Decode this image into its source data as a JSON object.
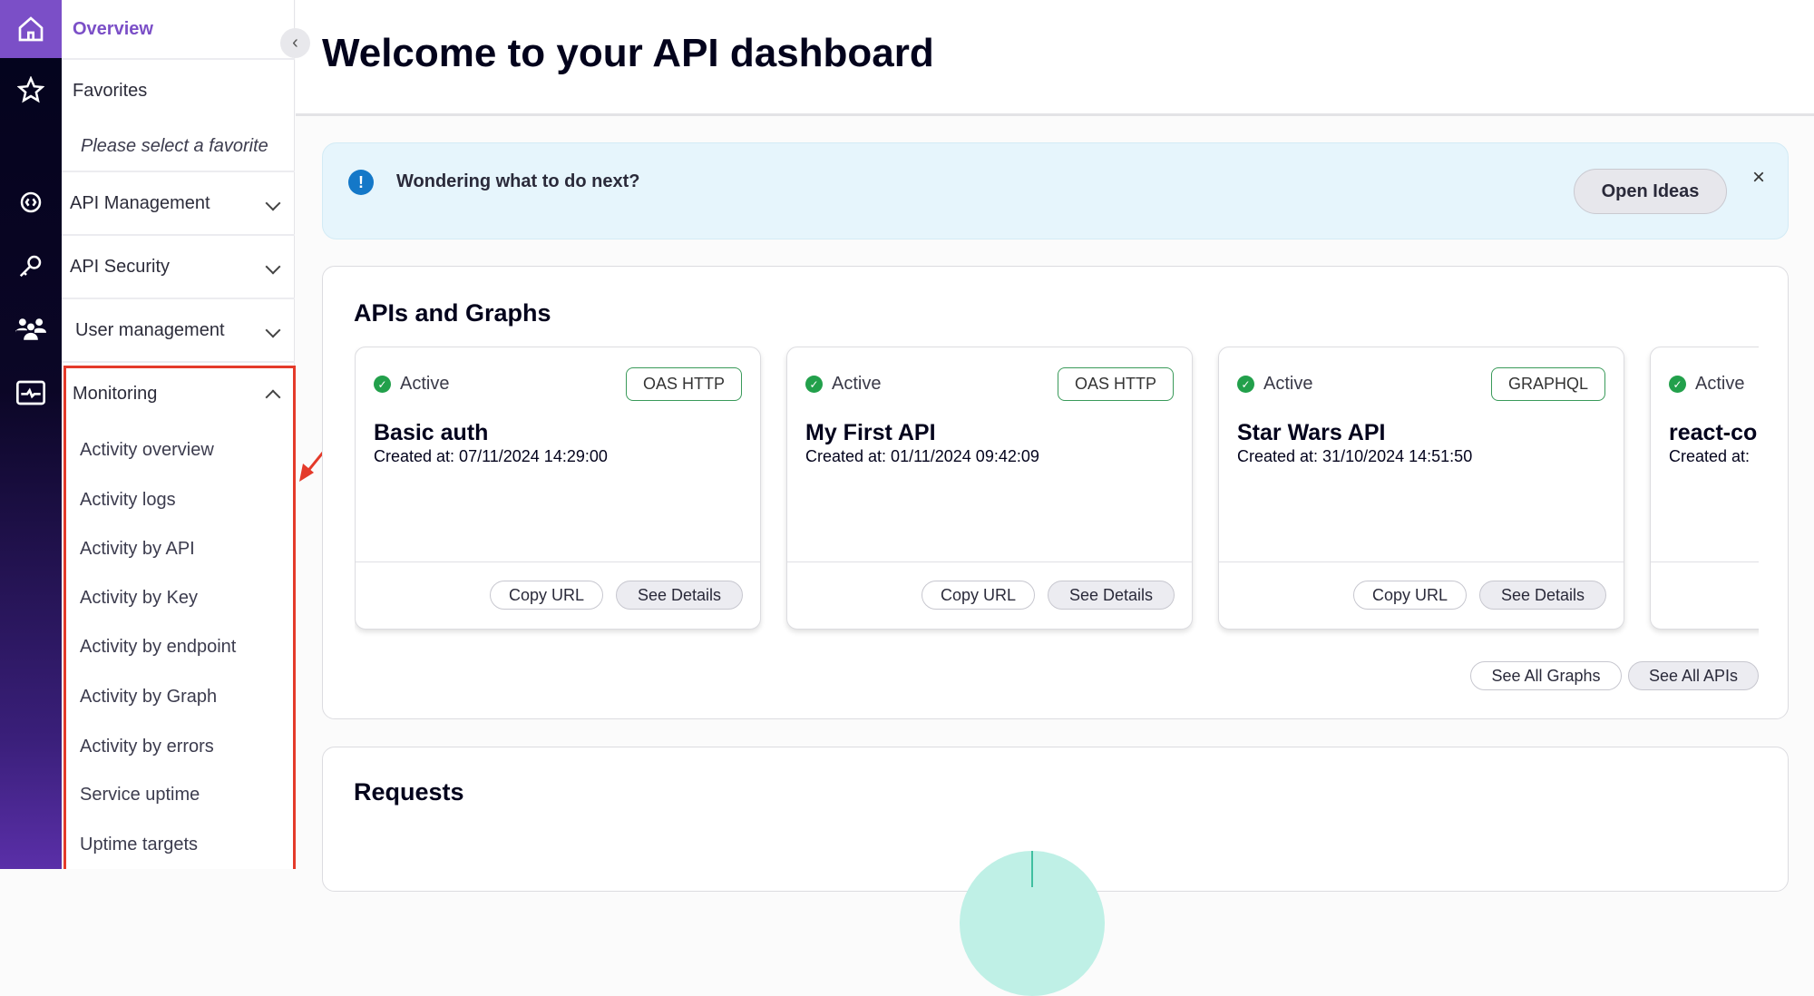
{
  "rail": {
    "icons": [
      "home-icon",
      "star-icon",
      "api-gear-icon",
      "key-icon",
      "users-icon",
      "monitor-pulse-icon"
    ]
  },
  "sidebar": {
    "overview": "Overview",
    "favorites": "Favorites",
    "favorites_empty": "Please select a favorite",
    "sections": [
      {
        "label": "API Management"
      },
      {
        "label": "API Security"
      },
      {
        "label": "User management"
      },
      {
        "label": "Monitoring"
      }
    ],
    "monitoring_items": [
      "Activity overview",
      "Activity logs",
      "Activity by API",
      "Activity by Key",
      "Activity by endpoint",
      "Activity by Graph",
      "Activity by errors",
      "Service uptime",
      "Uptime targets"
    ]
  },
  "header": {
    "title": "Welcome to your API dashboard"
  },
  "banner": {
    "text": "Wondering what to do next?",
    "button": "Open Ideas",
    "close": "×"
  },
  "apis": {
    "title": "APIs and Graphs",
    "cards": [
      {
        "status": "Active",
        "type": "OAS HTTP",
        "name": "Basic auth",
        "created": "Created at: 07/11/2024 14:29:00"
      },
      {
        "status": "Active",
        "type": "OAS HTTP",
        "name": "My First API",
        "created": "Created at: 01/11/2024 09:42:09"
      },
      {
        "status": "Active",
        "type": "GRAPHQL",
        "name": "Star Wars API",
        "created": "Created at: 31/10/2024 14:51:50"
      },
      {
        "status": "Active",
        "name": "react-co",
        "created": "Created at:"
      }
    ],
    "copy_url": "Copy URL",
    "see_details": "See Details",
    "see_all_graphs": "See All Graphs",
    "see_all_apis": "See All APIs"
  },
  "requests": {
    "title": "Requests"
  },
  "colors": {
    "accent": "#7b4fc7",
    "highlight": "#e43a2a",
    "active": "#22a04b"
  }
}
